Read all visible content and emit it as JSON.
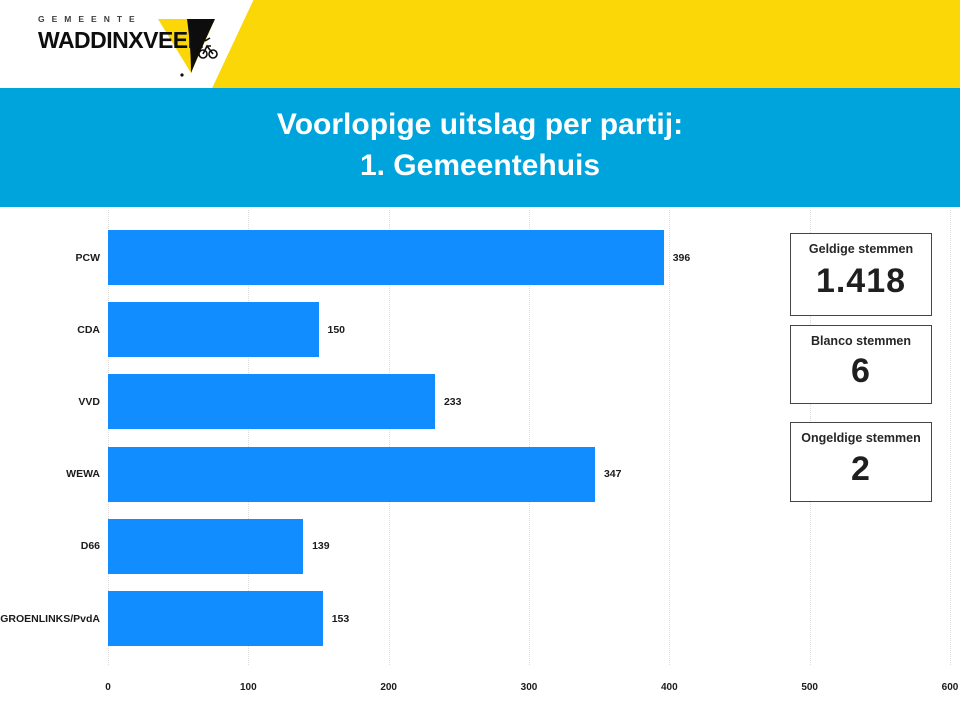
{
  "logo": {
    "gemeente": "GEMEENTE",
    "wordmark": "WADDINXVEEN"
  },
  "title": {
    "line1": "Voorlopige uitslag per partij:",
    "line2": "1. Gemeentehuis"
  },
  "chart_data": {
    "type": "bar",
    "orientation": "horizontal",
    "title": "Voorlopige uitslag per partij: 1. Gemeentehuis",
    "categories": [
      "PCW",
      "CDA",
      "VVD",
      "WEWA",
      "D66",
      "GROENLINKS/PvdA"
    ],
    "values": [
      396,
      150,
      233,
      347,
      139,
      153
    ],
    "data_labels": [
      "396",
      "150",
      "233",
      "347",
      "139",
      "153"
    ],
    "xlim": [
      0,
      600
    ],
    "x_ticks": [
      0,
      100,
      200,
      300,
      400,
      500,
      600
    ],
    "xlabel": "",
    "ylabel": "",
    "grid": "vertical-dotted",
    "legend": "none",
    "bar_color": "#118DFF"
  },
  "stats_boxes": [
    {
      "label": "Geldige stemmen",
      "value": "1.418"
    },
    {
      "label": "Blanco stemmen",
      "value": "6"
    },
    {
      "label": "Ongeldige stemmen",
      "value": "2"
    }
  ],
  "colors": {
    "banner_blue": "#00A4DC",
    "brand_yellow": "#FBD708",
    "bar_blue": "#118DFF",
    "text_dark": "#1b1b1b"
  }
}
